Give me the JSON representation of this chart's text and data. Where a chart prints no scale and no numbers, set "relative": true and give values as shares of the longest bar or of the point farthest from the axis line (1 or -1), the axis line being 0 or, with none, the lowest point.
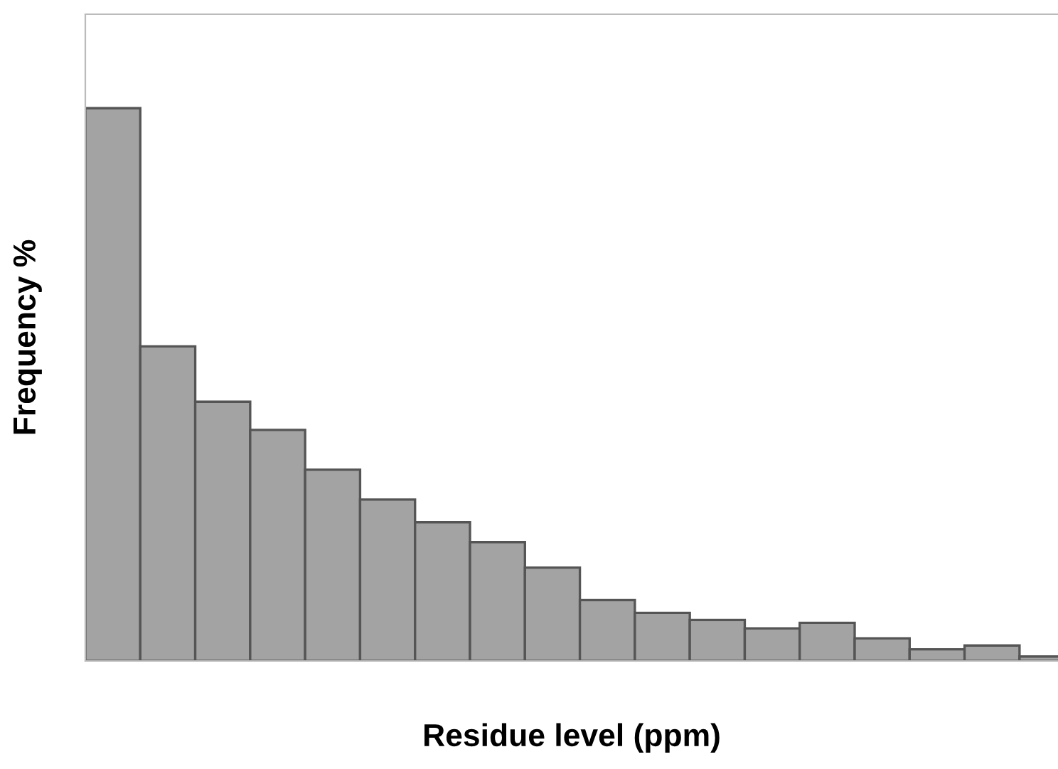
{
  "chart_data": {
    "type": "bar",
    "relative": true,
    "xlabel": "Residue level (ppm)",
    "ylabel": "Frequency %",
    "categories": [
      null,
      null,
      null,
      null,
      null,
      null,
      null,
      null,
      null,
      null,
      null,
      null,
      null,
      null,
      null,
      null,
      null,
      null
    ],
    "series": [
      {
        "color": "#a3a3a3",
        "values": [
          1,
          0.569,
          0.469,
          0.418,
          0.346,
          0.292,
          0.251,
          0.215,
          0.169,
          0.11,
          0.087,
          0.074,
          0.059,
          0.069,
          0.041,
          0.021,
          0.028,
          0.008
        ]
      }
    ],
    "grid": false,
    "legend": false
  }
}
